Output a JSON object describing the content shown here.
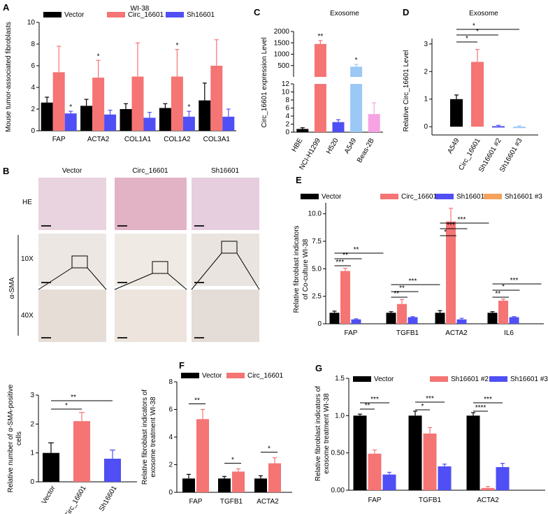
{
  "colors": {
    "black": "#000000",
    "red": "#f57474",
    "blue": "#4f4ff5",
    "lightblue": "#9bc8f5",
    "pink": "#f5a3e3",
    "orange": "#f5a25a",
    "errbar": "#e07070"
  },
  "chart_data": [
    {
      "panel": "A",
      "type": "bar",
      "title": "WI-38",
      "ylabel": "Mouse tumor-associated fibroblasts",
      "ylim": [
        0,
        10
      ],
      "yticks": [
        0,
        2,
        4,
        6,
        8,
        10
      ],
      "categories": [
        "FAP",
        "ACTA2",
        "COL1A1",
        "COL1A2",
        "COL3A1"
      ],
      "series": [
        {
          "name": "Vector",
          "color": "black",
          "values": [
            2.6,
            2.3,
            2.0,
            2.1,
            2.8
          ],
          "errors": [
            0.5,
            0.6,
            0.5,
            0.4,
            1.6
          ]
        },
        {
          "name": "Circ_16601",
          "color": "red",
          "values": [
            5.4,
            4.9,
            5.0,
            5.0,
            6.0
          ],
          "errors": [
            2.4,
            1.6,
            3.1,
            2.5,
            2.4
          ]
        },
        {
          "name": "Sh16601",
          "color": "blue",
          "values": [
            1.6,
            1.5,
            1.2,
            1.3,
            1.3
          ],
          "errors": [
            0.2,
            0.4,
            0.5,
            0.5,
            0.7
          ]
        }
      ],
      "stars": [
        {
          "cat": 0,
          "series": 2,
          "text": "*"
        },
        {
          "cat": 1,
          "series": 1,
          "text": "*"
        },
        {
          "cat": 3,
          "series": 1,
          "text": "*"
        },
        {
          "cat": 3,
          "series": 2,
          "text": "*"
        }
      ]
    },
    {
      "panel": "C",
      "type": "bar",
      "title": "Exosome",
      "ylabel": "Circ_16601 expression Level",
      "categories": [
        "HBE",
        "NCI-H1299",
        "H520",
        "A549",
        "Beas-2B"
      ],
      "values": [
        0.8,
        1450,
        2.5,
        450,
        4.5
      ],
      "errors": [
        0.3,
        150,
        0.6,
        100,
        2.8
      ],
      "colors": [
        "black",
        "red",
        "blue",
        "lightblue",
        "pink"
      ],
      "broken_axis": {
        "lower": [
          0,
          12
        ],
        "upper": [
          0,
          2000
        ]
      },
      "lower_ticks": [
        0,
        2,
        4,
        6,
        8,
        10,
        12
      ],
      "upper_ticks": [
        500,
        1000,
        1500,
        2000
      ],
      "stars": [
        {
          "cat": 1,
          "text": "**"
        },
        {
          "cat": 3,
          "text": "*"
        }
      ]
    },
    {
      "panel": "D",
      "type": "bar",
      "title": "Exosome",
      "ylabel": "Relative Circ_16601 Level",
      "ylim": [
        -0.3,
        3.2
      ],
      "yticks": [
        0,
        1,
        2,
        3
      ],
      "categories": [
        "A549",
        "Circ_16601",
        "Sh16601 #2",
        "Sh16601 #3"
      ],
      "values": [
        1.0,
        2.35,
        0.02,
        -0.03
      ],
      "errors": [
        0.15,
        0.45,
        0.03,
        0.06
      ],
      "colors": [
        "black",
        "red",
        "blue",
        "lightblue"
      ],
      "brackets": [
        {
          "from": 0,
          "to": 1,
          "text": "*"
        },
        {
          "from": 0,
          "to": 2,
          "text": "*"
        },
        {
          "from": 0,
          "to": 3,
          "text": "*"
        }
      ]
    },
    {
      "panel": "E",
      "type": "bar",
      "ylabel": "Relative fibroblast  indicators of Co-culture WI-38",
      "ylim": [
        0,
        11
      ],
      "yticks": [
        0,
        2.5,
        5.0,
        7.5,
        10.0
      ],
      "categories": [
        "FAP",
        "TGFB1",
        "ACTA2",
        "IL6"
      ],
      "series": [
        {
          "name": "Vector",
          "color": "black",
          "values": [
            1.0,
            1.0,
            1.0,
            1.0
          ],
          "errors": [
            0.15,
            0.1,
            0.2,
            0.1
          ]
        },
        {
          "name": "Circ_16601",
          "color": "red",
          "values": [
            4.8,
            1.8,
            9.3,
            2.1
          ],
          "errors": [
            0.25,
            0.4,
            1.2,
            0.15
          ]
        },
        {
          "name": "Sh16601 #2",
          "color": "blue",
          "values": [
            0.4,
            0.6,
            0.4,
            0.6
          ],
          "errors": [
            0.05,
            0.05,
            0.1,
            0.05
          ]
        },
        {
          "name": "Sh16601 #3",
          "color": "orange",
          "values": [
            0.0,
            0.0,
            0.0,
            0.0
          ],
          "errors": [
            0,
            0,
            0,
            0
          ]
        }
      ],
      "brackets": [
        {
          "cat": 0,
          "to": 1,
          "text": "***"
        },
        {
          "cat": 0,
          "to": 2,
          "text": "**"
        },
        {
          "cat": 0,
          "to": 3,
          "text": "**"
        },
        {
          "cat": 1,
          "to": 1,
          "text": "**"
        },
        {
          "cat": 1,
          "to": 2,
          "text": "**"
        },
        {
          "cat": 1,
          "to": 3,
          "text": "***"
        },
        {
          "cat": 2,
          "to": 1,
          "text": "*"
        },
        {
          "cat": 2,
          "to": 2,
          "text": "***"
        },
        {
          "cat": 2,
          "to": 3,
          "text": "***"
        },
        {
          "cat": 3,
          "to": 1,
          "text": "**"
        },
        {
          "cat": 3,
          "to": 2,
          "text": "*"
        },
        {
          "cat": 3,
          "to": 3,
          "text": "***"
        }
      ]
    },
    {
      "panel": "B-quant",
      "type": "bar",
      "ylabel": "Relative number of α-SMA-positive cells",
      "ylim": [
        0,
        3
      ],
      "yticks": [
        0,
        1,
        2,
        3
      ],
      "categories": [
        "Vector",
        "Circ_16601",
        "Sh16601"
      ],
      "values": [
        1.0,
        2.1,
        0.8
      ],
      "errors": [
        0.35,
        0.3,
        0.3
      ],
      "colors": [
        "black",
        "red",
        "blue"
      ],
      "brackets": [
        {
          "from": 0,
          "to": 1,
          "text": "*"
        },
        {
          "from": 0,
          "to": 2,
          "text": "**"
        }
      ]
    },
    {
      "panel": "F",
      "type": "bar",
      "ylabel": "Relative fibroblast indicators of exosome treatment WI-38",
      "ylim": [
        0,
        8
      ],
      "yticks": [
        0,
        2,
        4,
        6,
        8
      ],
      "categories": [
        "FAP",
        "TGFB1",
        "ACTA2"
      ],
      "series": [
        {
          "name": "Vector",
          "color": "black",
          "values": [
            1.0,
            1.0,
            1.0
          ],
          "errors": [
            0.3,
            0.15,
            0.2
          ]
        },
        {
          "name": "Circ_16601",
          "color": "red",
          "values": [
            5.3,
            1.5,
            2.1
          ],
          "errors": [
            0.7,
            0.2,
            0.4
          ]
        }
      ],
      "brackets": [
        {
          "cat": 0,
          "text": "**"
        },
        {
          "cat": 1,
          "text": "*"
        },
        {
          "cat": 2,
          "text": "*"
        }
      ]
    },
    {
      "panel": "G",
      "type": "bar",
      "ylabel": "Relative fibroblast indicators of exosome treatment WI-38",
      "ylim": [
        0,
        1.5
      ],
      "yticks": [
        0.0,
        0.5,
        1.0,
        1.5
      ],
      "yticklabels": [
        "0.00",
        "0.50",
        "1.0",
        "1.5"
      ],
      "categories": [
        "FAP",
        "TGFB1",
        "ACTA2"
      ],
      "series": [
        {
          "name": "Vector",
          "color": "black",
          "values": [
            1.0,
            1.0,
            1.0
          ],
          "errors": [
            0.02,
            0.06,
            0.04
          ]
        },
        {
          "name": "Sh16601 #2",
          "color": "red",
          "values": [
            0.49,
            0.76,
            0.03
          ],
          "errors": [
            0.05,
            0.08,
            0.02
          ]
        },
        {
          "name": "Sh16601 #3",
          "color": "blue",
          "values": [
            0.21,
            0.32,
            0.31
          ],
          "errors": [
            0.03,
            0.03,
            0.05
          ]
        }
      ],
      "brackets": [
        {
          "cat": 0,
          "to": 1,
          "text": "**"
        },
        {
          "cat": 0,
          "to": 2,
          "text": "***"
        },
        {
          "cat": 1,
          "to": 1,
          "text": "*"
        },
        {
          "cat": 1,
          "to": 2,
          "text": "***"
        },
        {
          "cat": 2,
          "to": 1,
          "text": "****"
        },
        {
          "cat": 2,
          "to": 2,
          "text": "***"
        }
      ]
    }
  ],
  "panelB": {
    "columns": [
      "Vector",
      "Circ_16601",
      "Sh16601"
    ],
    "rows": {
      "he": "HE",
      "x10": "10X",
      "x40": "40X",
      "stain": "α-SMA"
    }
  },
  "labels": {
    "A": "A",
    "B": "B",
    "C": "C",
    "D": "D",
    "E": "E",
    "F": "F",
    "G": "G"
  }
}
